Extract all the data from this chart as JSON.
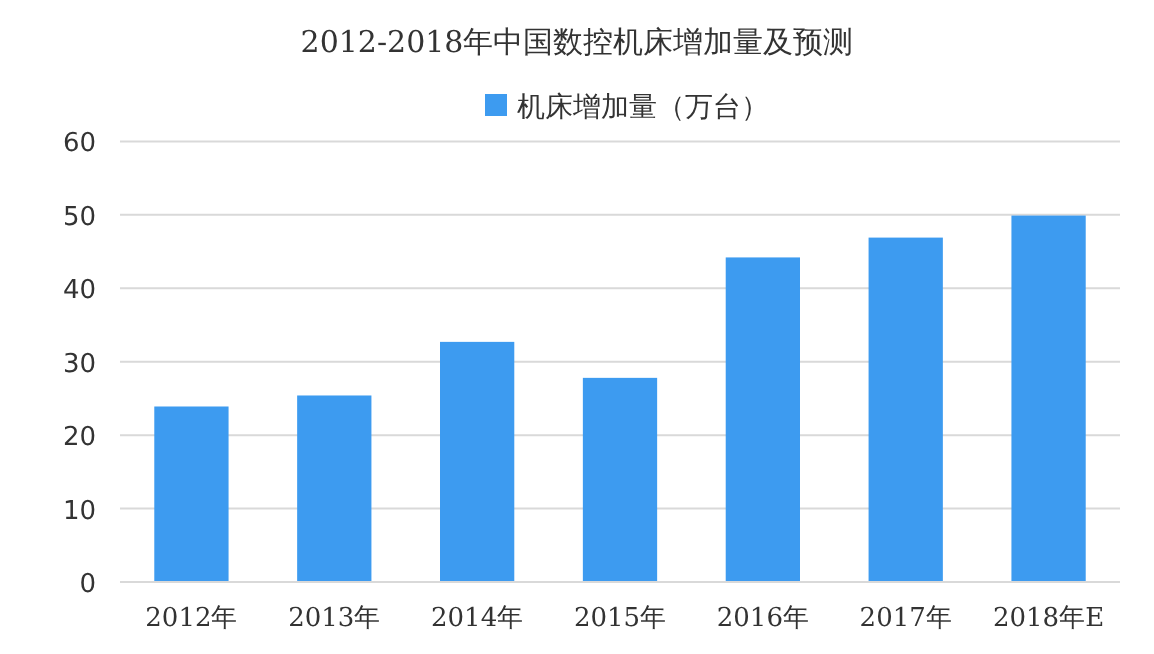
{
  "chart_data": {
    "type": "bar",
    "title": "2012-2018年中国数控机床增加量及预测",
    "categories": [
      "2012年",
      "2013年",
      "2014年",
      "2015年",
      "2016年",
      "2017年",
      "2018年E"
    ],
    "series": [
      {
        "name": "机床增加量（万台）",
        "color": "#3d9bf0",
        "values": [
          23.9,
          25.4,
          32.7,
          27.8,
          44.2,
          46.9,
          49.9
        ]
      }
    ],
    "ylim": [
      0,
      60
    ],
    "yticks": [
      0,
      10,
      20,
      30,
      40,
      50,
      60
    ],
    "grid": "y",
    "legend": "top"
  }
}
